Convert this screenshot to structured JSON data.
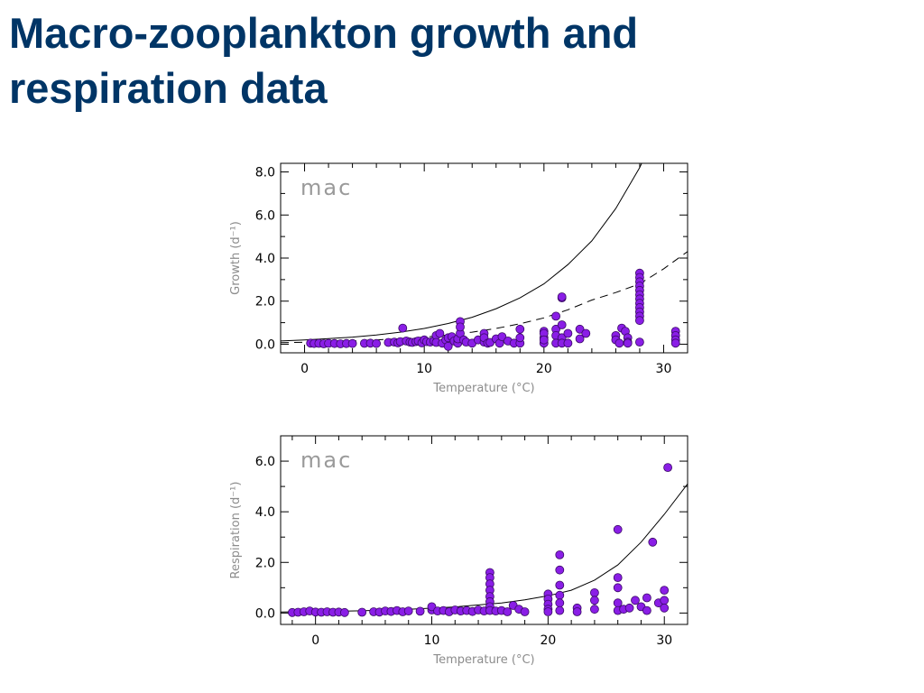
{
  "slide": {
    "title": "Macro-zooplankton growth and respiration data"
  },
  "chart_data": [
    {
      "type": "scatter",
      "panel_label": "mac",
      "xlabel": "Temperature (°C)",
      "ylabel": "Growth (d⁻¹)",
      "xlim": [
        -2,
        32
      ],
      "ylim": [
        -0.4,
        8.4
      ],
      "x_ticks": [
        0,
        10,
        20,
        30
      ],
      "x_tick_labels": [
        "0",
        "10",
        "20",
        "30"
      ],
      "y_ticks": [
        0,
        2,
        4,
        6,
        8
      ],
      "y_tick_labels": [
        "0.0",
        "2.0",
        "4.0",
        "6.0",
        "8.0"
      ],
      "grid": false,
      "marker_color": "#8a1ee6",
      "curves": [
        {
          "style": "solid",
          "x": [
            -2,
            0,
            2,
            4,
            6,
            8,
            10,
            12,
            14,
            16,
            18,
            20,
            22,
            24,
            26,
            28,
            29
          ],
          "y": [
            0.15,
            0.2,
            0.26,
            0.33,
            0.43,
            0.56,
            0.73,
            0.96,
            1.25,
            1.65,
            2.15,
            2.8,
            3.7,
            4.8,
            6.3,
            8.2,
            9.4
          ]
        },
        {
          "style": "dashed",
          "x": [
            -2,
            0,
            2,
            4,
            6,
            8,
            10,
            12,
            14,
            16,
            18,
            20,
            22,
            24,
            26,
            28,
            30,
            32
          ],
          "y": [
            0.07,
            0.09,
            0.12,
            0.15,
            0.2,
            0.26,
            0.33,
            0.43,
            0.56,
            0.73,
            0.95,
            1.22,
            1.6,
            2.05,
            2.4,
            2.8,
            3.5,
            4.3
          ]
        }
      ],
      "points": {
        "x": [
          0.5,
          0.8,
          1.2,
          1.6,
          2.0,
          2.5,
          3.0,
          3.5,
          4.0,
          5.0,
          5.5,
          6.0,
          7.0,
          7.5,
          7.8,
          8.0,
          8.2,
          8.5,
          8.8,
          9.0,
          9.3,
          9.5,
          9.8,
          10.0,
          10.2,
          10.5,
          10.8,
          11.0,
          11.0,
          11.3,
          11.5,
          11.8,
          12.0,
          12.0,
          12.3,
          12.5,
          12.8,
          12.8,
          12.8,
          13.0,
          13.0,
          13.0,
          13.3,
          13.5,
          14.0,
          14.5,
          15.0,
          15.0,
          15.0,
          15.3,
          15.5,
          16.0,
          16.3,
          16.5,
          17.0,
          17.5,
          18.0,
          18.0,
          18.0,
          20.0,
          20.0,
          20.0,
          20.0,
          20.0,
          21.0,
          21.0,
          21.0,
          21.0,
          21.5,
          21.5,
          21.5,
          21.5,
          21.5,
          22.0,
          22.0,
          23.0,
          23.0,
          23.5,
          26.0,
          26.0,
          26.3,
          26.5,
          26.8,
          27.0,
          27.0,
          27.0,
          28.0,
          28.0,
          28.0,
          28.0,
          28.0,
          28.0,
          28.0,
          28.0,
          28.0,
          28.0,
          28.0,
          28.0,
          28.0,
          31.0,
          31.0,
          31.0,
          31.0
        ],
        "y": [
          0.05,
          0.03,
          0.04,
          0.02,
          0.04,
          0.03,
          0.02,
          0.03,
          0.03,
          0.04,
          0.05,
          0.03,
          0.08,
          0.1,
          0.06,
          0.12,
          0.75,
          0.15,
          0.1,
          0.08,
          0.12,
          0.15,
          0.06,
          0.2,
          0.12,
          0.1,
          0.15,
          0.4,
          0.08,
          0.5,
          0.05,
          0.2,
          0.3,
          -0.1,
          0.35,
          0.15,
          0.2,
          0.05,
          0.25,
          0.5,
          1.05,
          0.8,
          0.2,
          0.1,
          0.05,
          0.2,
          0.5,
          0.1,
          0.3,
          0.05,
          0.08,
          0.25,
          0.05,
          0.35,
          0.15,
          0.05,
          0.7,
          0.05,
          0.3,
          0.6,
          0.3,
          0.05,
          0.5,
          0.2,
          0.7,
          0.4,
          0.05,
          1.3,
          2.15,
          2.2,
          0.9,
          0.3,
          0.05,
          0.5,
          0.05,
          0.7,
          0.25,
          0.5,
          0.4,
          0.2,
          0.05,
          0.75,
          0.6,
          0.3,
          0.1,
          0.05,
          3.3,
          3.1,
          2.9,
          2.7,
          2.5,
          2.3,
          2.1,
          1.9,
          1.7,
          1.5,
          1.3,
          1.1,
          0.1,
          0.6,
          0.4,
          0.2,
          0.05
        ]
      }
    },
    {
      "type": "scatter",
      "panel_label": "mac",
      "xlabel": "Temperature (°C)",
      "ylabel": "Respiration (d⁻¹)",
      "xlim": [
        -3,
        32
      ],
      "ylim": [
        -0.45,
        7.0
      ],
      "x_ticks": [
        0,
        10,
        20,
        30
      ],
      "x_tick_labels": [
        "0",
        "10",
        "20",
        "30"
      ],
      "y_ticks": [
        0,
        2,
        4,
        6
      ],
      "y_tick_labels": [
        "0.0",
        "2.0",
        "4.0",
        "6.0"
      ],
      "grid": false,
      "marker_color": "#8a1ee6",
      "curves": [
        {
          "style": "solid",
          "x": [
            -3,
            0,
            4,
            8,
            12,
            16,
            18,
            20,
            22,
            24,
            26,
            28,
            30,
            32
          ],
          "y": [
            0.04,
            0.06,
            0.09,
            0.15,
            0.24,
            0.4,
            0.52,
            0.68,
            0.9,
            1.3,
            1.9,
            2.8,
            3.9,
            5.1
          ]
        }
      ],
      "points": {
        "x": [
          -2.0,
          -1.5,
          -1.0,
          -0.5,
          0.0,
          0.5,
          1.0,
          1.5,
          2.0,
          2.5,
          4.0,
          5.0,
          5.5,
          6.0,
          6.5,
          7.0,
          7.5,
          8.0,
          9.0,
          10.0,
          10.0,
          10.5,
          11.0,
          11.5,
          12.0,
          12.5,
          13.0,
          13.5,
          14.0,
          14.5,
          15.0,
          15.0,
          15.0,
          15.0,
          15.0,
          15.0,
          15.0,
          15.0,
          15.5,
          16.0,
          16.5,
          17.0,
          17.5,
          18.0,
          20.0,
          20.0,
          20.0,
          20.0,
          20.0,
          21.0,
          21.0,
          21.0,
          21.0,
          21.0,
          21.0,
          22.5,
          22.5,
          24.0,
          24.0,
          24.0,
          26.0,
          26.0,
          26.0,
          26.0,
          26.0,
          26.5,
          27.0,
          27.5,
          28.0,
          28.5,
          28.5,
          29.0,
          29.5,
          30.0,
          30.0,
          30.0,
          30.3
        ],
        "y": [
          0.02,
          0.03,
          0.05,
          0.08,
          0.04,
          0.03,
          0.05,
          0.03,
          0.04,
          0.02,
          0.03,
          0.05,
          0.04,
          0.08,
          0.06,
          0.1,
          0.05,
          0.08,
          0.07,
          0.12,
          0.25,
          0.08,
          0.1,
          0.05,
          0.12,
          0.08,
          0.1,
          0.06,
          0.12,
          0.08,
          1.6,
          1.4,
          1.15,
          0.9,
          0.65,
          0.45,
          0.25,
          0.1,
          0.08,
          0.1,
          0.05,
          0.3,
          0.15,
          0.05,
          0.75,
          0.55,
          0.35,
          0.15,
          0.05,
          2.3,
          1.7,
          1.1,
          0.7,
          0.4,
          0.1,
          0.2,
          0.05,
          0.8,
          0.5,
          0.15,
          3.3,
          1.4,
          1.0,
          0.4,
          0.1,
          0.15,
          0.2,
          0.5,
          0.25,
          0.6,
          0.1,
          2.8,
          0.4,
          0.9,
          0.5,
          0.2,
          5.75
        ]
      }
    }
  ]
}
